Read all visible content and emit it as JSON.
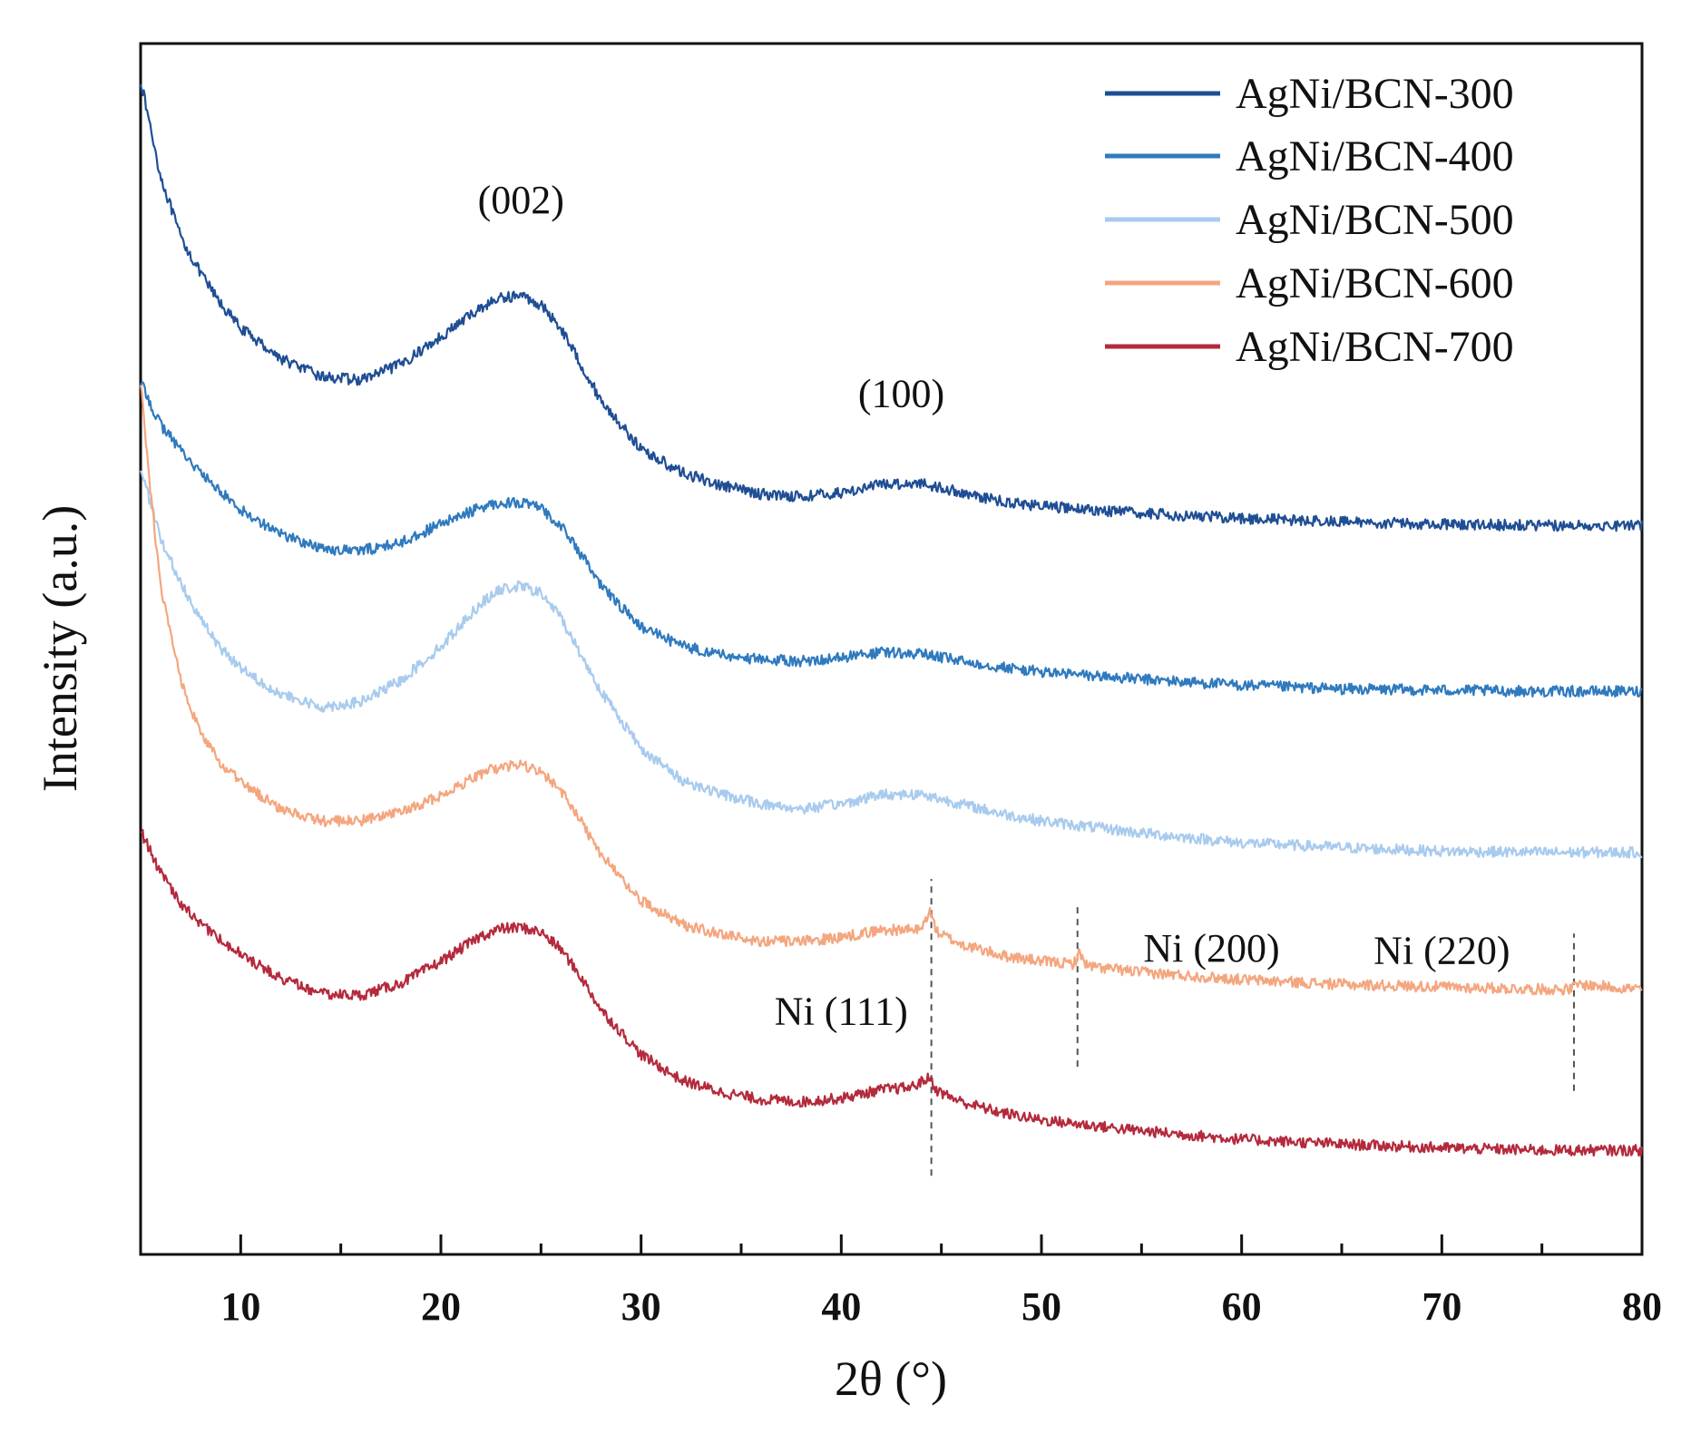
{
  "chart_data": {
    "type": "line",
    "title": "",
    "xlabel": "2θ (°)",
    "ylabel": "Intensity (a.u.)",
    "xlim": [
      5,
      80
    ],
    "ylim": [
      0,
      100
    ],
    "xticks": [
      10,
      20,
      30,
      40,
      50,
      60,
      70,
      80
    ],
    "xtick_labels": [
      "10",
      "20",
      "30",
      "40",
      "50",
      "60",
      "70",
      "80"
    ],
    "grid": false,
    "legend_position": "top-right",
    "series": [
      {
        "name": "AgNi/BCN-300",
        "color": "#1f4e94",
        "x": [
          5,
          6,
          7,
          8,
          9,
          10,
          12,
          14,
          16,
          18,
          20,
          22,
          23,
          24,
          25,
          26,
          27,
          28,
          30,
          32,
          34,
          36,
          38,
          40,
          42,
          44,
          46,
          48,
          50,
          55,
          60,
          65,
          70,
          75,
          80
        ],
        "y": [
          97,
          89,
          84,
          81,
          78.5,
          76.5,
          74,
          72.5,
          72.2,
          73.5,
          75.8,
          78.2,
          79,
          79.2,
          78.4,
          76.5,
          73.5,
          70.5,
          66.5,
          64.6,
          63.5,
          62.8,
          62.6,
          62.9,
          63.6,
          63.7,
          62.9,
          62.2,
          61.8,
          61.2,
          60.8,
          60.5,
          60.3,
          60.2,
          60.2
        ]
      },
      {
        "name": "AgNi/BCN-400",
        "color": "#2f7abf",
        "x": [
          5,
          6,
          7,
          8,
          9,
          10,
          12,
          14,
          16,
          18,
          20,
          22,
          23,
          24,
          25,
          26,
          27,
          28,
          30,
          32,
          34,
          36,
          38,
          40,
          42,
          44,
          46,
          48,
          50,
          55,
          60,
          65,
          70,
          75,
          80
        ],
        "y": [
          72,
          68.5,
          66.5,
          64.5,
          63,
          61.5,
          59.5,
          58.3,
          58.1,
          58.8,
          60.3,
          61.7,
          62.1,
          62.1,
          61.6,
          60.2,
          57.8,
          55.2,
          51.8,
          50.3,
          49.5,
          49.1,
          49,
          49.3,
          49.7,
          49.6,
          49,
          48.5,
          48.1,
          47.5,
          47,
          46.7,
          46.6,
          46.5,
          46.5
        ]
      },
      {
        "name": "AgNi/BCN-500",
        "color": "#a8cbee",
        "x": [
          5,
          6,
          7,
          8,
          9,
          10,
          12,
          14,
          16,
          18,
          20,
          22,
          23,
          24,
          25,
          26,
          27,
          28,
          30,
          32,
          34,
          36,
          38,
          40,
          42,
          44,
          46,
          48,
          50,
          55,
          60,
          65,
          70,
          75,
          80
        ],
        "y": [
          65,
          59,
          55.5,
          52.5,
          50,
          48.5,
          46.2,
          45.2,
          45.6,
          47.4,
          50.2,
          53.8,
          54.9,
          55.2,
          54.6,
          52.6,
          49.5,
          46.5,
          41.8,
          39.2,
          38,
          37.2,
          36.8,
          37.2,
          38,
          38,
          37.2,
          36.4,
          35.8,
          34.8,
          34,
          33.6,
          33.3,
          33.2,
          33.2
        ]
      },
      {
        "name": "AgNi/BCN-600",
        "color": "#f4a67f",
        "x": [
          5,
          5.5,
          6,
          7,
          8,
          9,
          10,
          12,
          14,
          16,
          18,
          20,
          22,
          23,
          24,
          25,
          26,
          27,
          28,
          30,
          32,
          34,
          36,
          38,
          40,
          42,
          44,
          44.4,
          44.8,
          46,
          48,
          50,
          51.6,
          51.9,
          52.3,
          55,
          60,
          65,
          70,
          75,
          76.4,
          76.8,
          80
        ],
        "y": [
          72,
          63,
          55,
          47.5,
          43,
          40.5,
          39,
          36.8,
          35.8,
          35.8,
          36.5,
          37.9,
          39.7,
          40.3,
          40.4,
          39.8,
          38.3,
          35.8,
          33,
          29.2,
          27.3,
          26.4,
          25.9,
          25.8,
          26.2,
          26.8,
          26.8,
          28.4,
          26.6,
          25.6,
          24.7,
          24.2,
          24,
          24.9,
          23.8,
          23.3,
          22.7,
          22.3,
          22.1,
          21.9,
          21.9,
          22.3,
          21.9
        ]
      },
      {
        "name": "AgNi/BCN-700",
        "color": "#b42a3c",
        "x": [
          5,
          6,
          7,
          8,
          9,
          10,
          12,
          14,
          16,
          18,
          20,
          22,
          23,
          24,
          25,
          26,
          27,
          28,
          30,
          32,
          34,
          36,
          38,
          40,
          42,
          43.5,
          44.4,
          44.8,
          46,
          48,
          50,
          55,
          60,
          65,
          70,
          75,
          80
        ],
        "y": [
          35,
          31.5,
          29,
          27.3,
          26,
          24.8,
          22.8,
          21.5,
          21.4,
          22.4,
          24.2,
          26.3,
          26.9,
          27,
          26.6,
          25.2,
          22.9,
          20.2,
          16.5,
          14.4,
          13.4,
          12.8,
          12.6,
          12.9,
          13.6,
          13.8,
          14.6,
          13.5,
          12.6,
          11.7,
          11.1,
          10.2,
          9.5,
          9.1,
          8.8,
          8.6,
          8.6
        ]
      }
    ],
    "annotations": [
      {
        "text": "(002)",
        "x": 24,
        "y": 86
      },
      {
        "text": "(100)",
        "x": 43,
        "y": 70
      },
      {
        "text": "Ni (111)",
        "x": 40,
        "y": 19
      },
      {
        "text": "Ni (200)",
        "x": 58.5,
        "y": 24.2
      },
      {
        "text": "Ni (220)",
        "x": 70,
        "y": 24
      }
    ],
    "reference_lines": [
      {
        "x": 44.5,
        "y_from": 6.5,
        "y_to": 31
      },
      {
        "x": 51.8,
        "y_from": 15.5,
        "y_to": 29
      },
      {
        "x": 76.6,
        "y_from": 13.5,
        "y_to": 26.5
      }
    ]
  }
}
